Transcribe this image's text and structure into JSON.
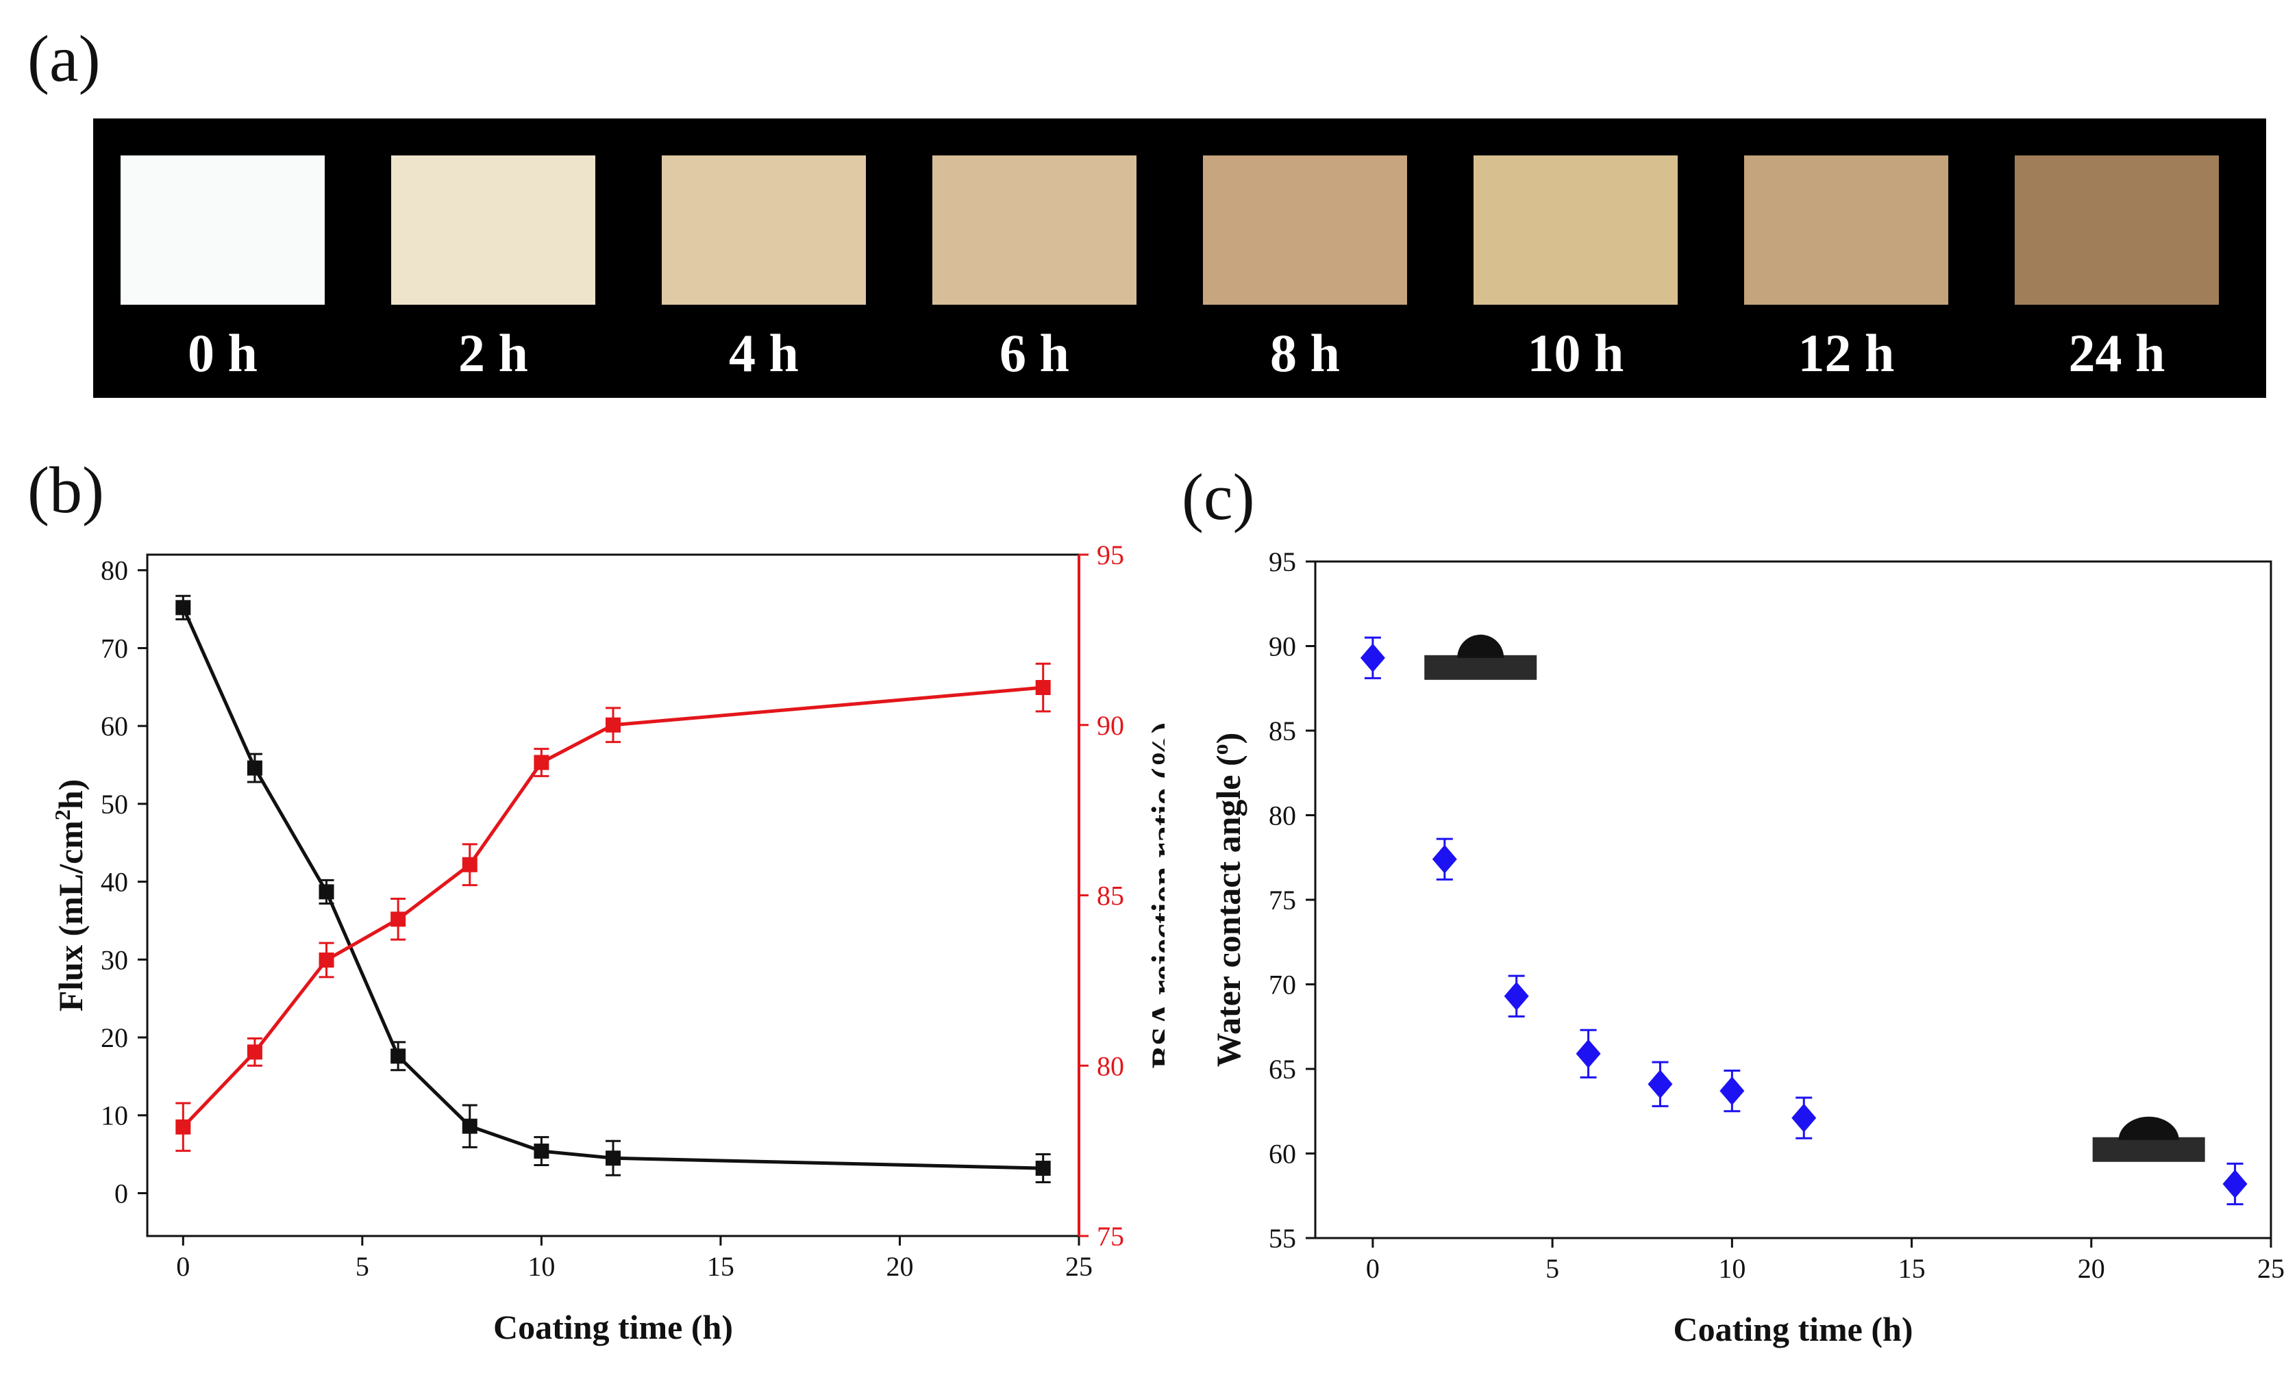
{
  "panel_labels": {
    "a": "(a)",
    "b": "(b)",
    "c": "(c)"
  },
  "photo_strip": {
    "samples": [
      {
        "label": "0 h",
        "color": "#f9fbfb"
      },
      {
        "label": "2 h",
        "color": "#eee3cb"
      },
      {
        "label": "4 h",
        "color": "#dfcaa5"
      },
      {
        "label": "6 h",
        "color": "#d7bd98"
      },
      {
        "label": "8 h",
        "color": "#c6a57f"
      },
      {
        "label": "10 h",
        "color": "#d8bf90"
      },
      {
        "label": "12 h",
        "color": "#c3a47c"
      },
      {
        "label": "24 h",
        "color": "#a07e59"
      }
    ]
  },
  "colors": {
    "flux": "#111111",
    "bsa": "#e3161b",
    "wca": "#1d12f2",
    "bsa_axis": "#e3161b"
  },
  "chart_data": [
    {
      "id": "b",
      "type": "line",
      "title": "",
      "xlabel": "Coating time (h)",
      "ylabel": "Flux (mL/cm²h)",
      "ylabel_parts": [
        "Flux (mL/cm",
        "2",
        "h)"
      ],
      "y2label": "BSA rejection ratio (%)",
      "xlim": [
        -1,
        25
      ],
      "ylim": [
        -5.5,
        82
      ],
      "y2lim": [
        75,
        95
      ],
      "xticks": [
        0,
        5,
        10,
        15,
        20,
        25
      ],
      "yticks": [
        0,
        10,
        20,
        30,
        40,
        50,
        60,
        70,
        80
      ],
      "y2ticks": [
        75,
        80,
        85,
        90,
        95
      ],
      "x": [
        0,
        2,
        4,
        6,
        8,
        10,
        12,
        24
      ],
      "series": [
        {
          "name": "Flux",
          "axis": "left",
          "marker": "square",
          "color": "#111111",
          "values": [
            75.2,
            54.6,
            38.7,
            17.6,
            8.6,
            5.4,
            4.5,
            3.2
          ],
          "errors": [
            1.5,
            1.8,
            1.5,
            1.8,
            2.7,
            1.8,
            2.2,
            1.8
          ]
        },
        {
          "name": "BSA rejection ratio",
          "axis": "right",
          "marker": "square",
          "color": "#e3161b",
          "values": [
            78.2,
            80.4,
            83.1,
            84.3,
            85.9,
            88.9,
            90.0,
            91.1
          ],
          "errors": [
            0.7,
            0.4,
            0.5,
            0.6,
            0.6,
            0.4,
            0.5,
            0.7
          ]
        }
      ]
    },
    {
      "id": "c",
      "type": "scatter",
      "title": "",
      "xlabel": "Coating time (h)",
      "ylabel": "Water contact angle (°)",
      "ylabel_parts": [
        "Water contact angle (",
        "o",
        ")"
      ],
      "xlim": [
        -1.6,
        25
      ],
      "ylim": [
        55,
        95
      ],
      "xticks": [
        0,
        5,
        10,
        15,
        20,
        25
      ],
      "yticks": [
        55,
        60,
        65,
        70,
        75,
        80,
        85,
        90,
        95
      ],
      "x": [
        0,
        2,
        4,
        6,
        8,
        10,
        12,
        24
      ],
      "series": [
        {
          "name": "Water contact angle",
          "marker": "diamond",
          "color": "#1d12f2",
          "values": [
            89.3,
            77.4,
            69.3,
            65.9,
            64.1,
            63.7,
            62.1,
            58.2
          ],
          "errors": [
            1.2,
            1.2,
            1.2,
            1.4,
            1.3,
            1.2,
            1.2,
            1.2
          ]
        }
      ],
      "insets": [
        {
          "name": "droplet-high-contact-angle",
          "x": 3,
          "y": 89.3
        },
        {
          "name": "droplet-low-contact-angle",
          "x": 21.6,
          "y": 60.8
        }
      ]
    }
  ]
}
